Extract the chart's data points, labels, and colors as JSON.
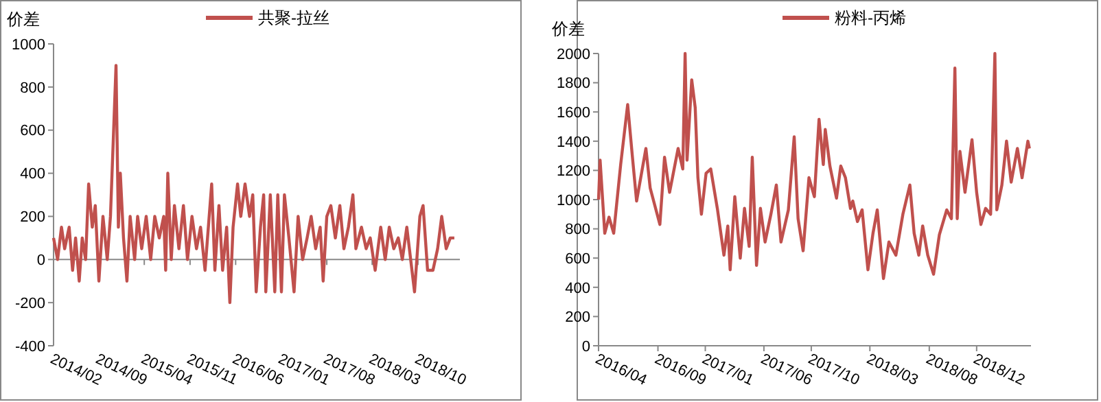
{
  "chart_data": [
    {
      "type": "line",
      "ylabel": "价差",
      "legend": "top",
      "xlim": [
        "2014-02-01",
        "2019-04-15"
      ],
      "xticks": [
        {
          "value": "2014-02",
          "label": "2014/02"
        },
        {
          "value": "2014-09",
          "label": "2014/09"
        },
        {
          "value": "2015-04",
          "label": "2015/04"
        },
        {
          "value": "2015-11",
          "label": "2015/11"
        },
        {
          "value": "2016-06",
          "label": "2016/06"
        },
        {
          "value": "2017-01",
          "label": "2017/01"
        },
        {
          "value": "2017-08",
          "label": "2017/08"
        },
        {
          "value": "2018-03",
          "label": "2018/03"
        },
        {
          "value": "2018-10",
          "label": "2018/10"
        }
      ],
      "ylim": [
        -400,
        1000
      ],
      "yticks": [
        -400,
        -200,
        0,
        200,
        400,
        600,
        800,
        1000
      ],
      "series": [
        {
          "name": "共聚-拉丝",
          "color": "#c0504d",
          "x": [
            "2014-02-01",
            "2014-02-20",
            "2014-03-10",
            "2014-03-25",
            "2014-04-15",
            "2014-05-01",
            "2014-05-15",
            "2014-06-01",
            "2014-06-15",
            "2014-07-01",
            "2014-07-15",
            "2014-08-01",
            "2014-08-15",
            "2014-09-01",
            "2014-09-20",
            "2014-10-10",
            "2014-10-25",
            "2014-11-20",
            "2014-12-01",
            "2014-12-10",
            "2014-12-25",
            "2015-01-10",
            "2015-01-25",
            "2015-02-15",
            "2015-03-01",
            "2015-03-20",
            "2015-04-10",
            "2015-05-01",
            "2015-05-20",
            "2015-06-10",
            "2015-07-01",
            "2015-07-10",
            "2015-07-20",
            "2015-08-05",
            "2015-08-20",
            "2015-09-10",
            "2015-10-01",
            "2015-10-20",
            "2015-11-10",
            "2015-12-01",
            "2015-12-20",
            "2016-01-10",
            "2016-02-10",
            "2016-02-25",
            "2016-03-15",
            "2016-04-01",
            "2016-04-20",
            "2016-05-05",
            "2016-05-20",
            "2016-06-10",
            "2016-06-25",
            "2016-07-15",
            "2016-08-05",
            "2016-08-20",
            "2016-09-05",
            "2016-09-25",
            "2016-10-10",
            "2016-10-20",
            "2016-11-10",
            "2016-12-01",
            "2016-12-15",
            "2017-01-01",
            "2017-01-15",
            "2017-02-05",
            "2017-03-01",
            "2017-03-20",
            "2017-04-10",
            "2017-05-01",
            "2017-05-20",
            "2017-06-10",
            "2017-07-01",
            "2017-07-15",
            "2017-08-01",
            "2017-08-20",
            "2017-09-10",
            "2017-10-01",
            "2017-10-20",
            "2017-11-10",
            "2017-12-01",
            "2017-12-15",
            "2018-01-10",
            "2018-02-01",
            "2018-02-20",
            "2018-03-15",
            "2018-04-10",
            "2018-05-01",
            "2018-05-20",
            "2018-06-10",
            "2018-07-01",
            "2018-07-20",
            "2018-08-10",
            "2018-09-15",
            "2018-10-10",
            "2018-10-25",
            "2018-11-15",
            "2018-12-10",
            "2019-01-01",
            "2019-01-20",
            "2019-02-10",
            "2019-03-01",
            "2019-03-20"
          ],
          "values": [
            100,
            0,
            150,
            50,
            150,
            -50,
            100,
            -100,
            100,
            0,
            350,
            150,
            250,
            -100,
            200,
            0,
            200,
            900,
            150,
            400,
            100,
            -100,
            200,
            0,
            200,
            50,
            200,
            0,
            200,
            100,
            200,
            -50,
            400,
            0,
            250,
            50,
            250,
            0,
            200,
            50,
            150,
            -50,
            350,
            -50,
            250,
            -50,
            150,
            -200,
            150,
            350,
            200,
            350,
            200,
            300,
            -150,
            150,
            300,
            -150,
            300,
            -150,
            300,
            -150,
            300,
            100,
            -150,
            200,
            0,
            100,
            200,
            50,
            150,
            -100,
            200,
            250,
            100,
            250,
            50,
            150,
            300,
            50,
            150,
            50,
            100,
            -50,
            150,
            0,
            150,
            50,
            100,
            0,
            150,
            -150,
            200,
            250,
            -50,
            -50,
            50,
            200,
            50,
            100,
            100
          ]
        }
      ]
    },
    {
      "type": "line",
      "ylabel": "价差",
      "legend": "top",
      "xlim": [
        "2016-04-01",
        "2019-04-20"
      ],
      "xticks": [
        {
          "value": "2016-04",
          "label": "2016/04"
        },
        {
          "value": "2016-09",
          "label": "2016/09"
        },
        {
          "value": "2017-01",
          "label": "2017/01"
        },
        {
          "value": "2017-06",
          "label": "2017/06"
        },
        {
          "value": "2017-10",
          "label": "2017/10"
        },
        {
          "value": "2018-03",
          "label": "2018/03"
        },
        {
          "value": "2018-08",
          "label": "2018/08"
        },
        {
          "value": "2018-12",
          "label": "2018/12"
        }
      ],
      "ylim": [
        0,
        2000
      ],
      "yticks": [
        0,
        200,
        400,
        600,
        800,
        1000,
        1200,
        1400,
        1600,
        1800,
        2000
      ],
      "series": [
        {
          "name": "粉料-丙烯",
          "color": "#c0504d",
          "x": [
            "2016-04-01",
            "2016-04-05",
            "2016-04-17",
            "2016-04-28",
            "2016-05-10",
            "2016-05-28",
            "2016-06-15",
            "2016-06-27",
            "2016-07-08",
            "2016-08-01",
            "2016-08-12",
            "2016-09-06",
            "2016-09-18",
            "2016-10-01",
            "2016-10-23",
            "2016-11-04",
            "2016-11-10",
            "2016-11-15",
            "2016-11-27",
            "2016-12-06",
            "2016-12-13",
            "2016-12-22",
            "2017-01-03",
            "2017-01-15",
            "2017-02-01",
            "2017-02-18",
            "2017-02-28",
            "2017-03-06",
            "2017-03-18",
            "2017-04-01",
            "2017-04-12",
            "2017-04-24",
            "2017-05-02",
            "2017-05-13",
            "2017-05-23",
            "2017-06-04",
            "2017-06-19",
            "2017-07-03",
            "2017-07-15",
            "2017-08-03",
            "2017-08-18",
            "2017-08-28",
            "2017-09-10",
            "2017-09-25",
            "2017-10-09",
            "2017-10-21",
            "2017-11-01",
            "2017-11-06",
            "2017-11-18",
            "2017-12-05",
            "2017-12-16",
            "2017-12-28",
            "2018-01-10",
            "2018-01-16",
            "2018-01-28",
            "2018-02-09",
            "2018-02-24",
            "2018-03-09",
            "2018-03-20",
            "2018-04-05",
            "2018-04-19",
            "2018-05-07",
            "2018-05-25",
            "2018-06-12",
            "2018-06-23",
            "2018-07-05",
            "2018-07-15",
            "2018-07-28",
            "2018-08-12",
            "2018-08-27",
            "2018-09-15",
            "2018-09-27",
            "2018-10-06",
            "2018-10-12",
            "2018-10-19",
            "2018-11-01",
            "2018-11-19",
            "2018-12-01",
            "2018-12-12",
            "2018-12-24",
            "2019-01-06",
            "2019-01-17",
            "2019-01-22",
            "2019-02-04",
            "2019-02-16",
            "2019-02-28",
            "2019-03-16",
            "2019-03-28",
            "2019-04-12",
            "2019-04-16"
          ],
          "values": [
            1000,
            1270,
            770,
            880,
            770,
            1240,
            1650,
            1300,
            990,
            1350,
            1080,
            830,
            1290,
            1050,
            1350,
            1210,
            2000,
            1270,
            1820,
            1630,
            1150,
            900,
            1180,
            1210,
            940,
            620,
            820,
            520,
            1020,
            600,
            940,
            680,
            1290,
            550,
            940,
            710,
            900,
            1100,
            710,
            930,
            1430,
            870,
            650,
            1150,
            1020,
            1550,
            1240,
            1480,
            1230,
            1010,
            1230,
            1150,
            940,
            990,
            850,
            930,
            520,
            770,
            930,
            460,
            710,
            620,
            900,
            1100,
            770,
            620,
            820,
            620,
            490,
            760,
            930,
            870,
            1900,
            870,
            1330,
            1050,
            1410,
            1050,
            830,
            940,
            900,
            2000,
            930,
            1100,
            1400,
            1120,
            1350,
            1150,
            1400,
            1350
          ]
        }
      ]
    }
  ]
}
